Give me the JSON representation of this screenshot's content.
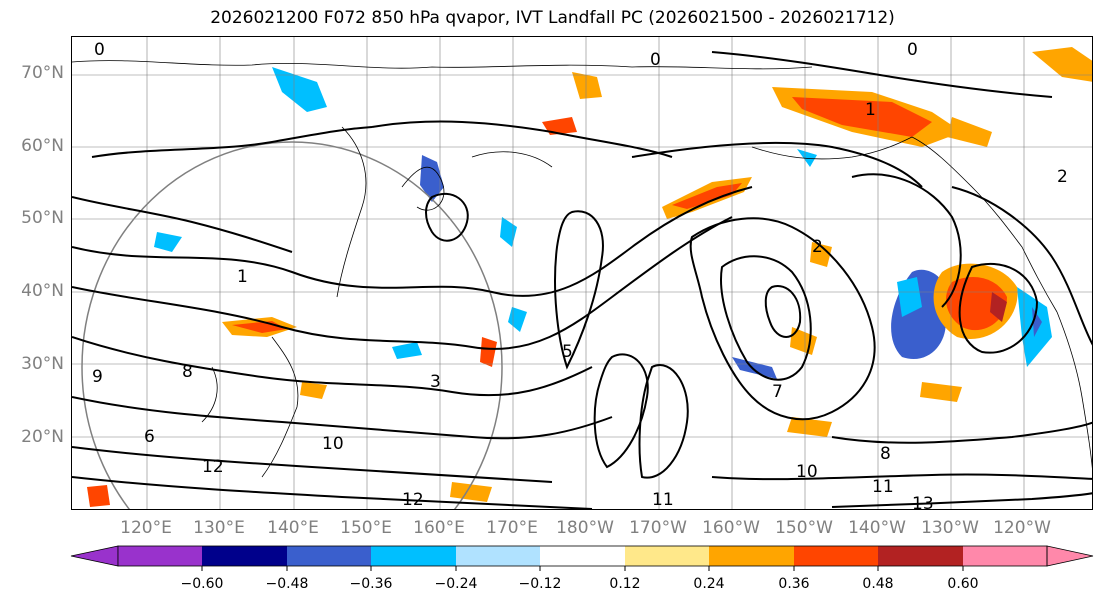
{
  "title": "2026021200 F072 850 hPa qvapor, IVT Landfall PC (2026021500 - 2026021712)",
  "lat_labels": [
    "70°N",
    "60°N",
    "50°N",
    "40°N",
    "30°N",
    "20°N"
  ],
  "lon_labels": [
    "120°E",
    "130°E",
    "140°E",
    "150°E",
    "160°E",
    "170°E",
    "180°W",
    "170°W",
    "160°W",
    "150°W",
    "140°W",
    "130°W",
    "120°W"
  ],
  "colorbar": {
    "tick_labels": [
      "−0.60",
      "−0.48",
      "−0.36",
      "−0.24",
      "−0.12",
      "0.12",
      "0.24",
      "0.36",
      "0.48",
      "0.60"
    ],
    "colors": [
      "#9932cc",
      "#00008b",
      "#3a5fcd",
      "#00bfff",
      "#b0e2ff",
      "#ffffff",
      "#ffe88a",
      "#ffa500",
      "#ff4500",
      "#b22222",
      "#ff88aa"
    ]
  },
  "contour_labels": [
    "0",
    "0",
    "0",
    "1",
    "1",
    "2",
    "2",
    "3",
    "5",
    "6",
    "7",
    "8",
    "8",
    "9",
    "10",
    "10",
    "11",
    "11",
    "12",
    "12",
    "13"
  ],
  "colors": {
    "contour": "#000000",
    "coastline": "#000000",
    "grid": "#808080",
    "axis_label": "#808080",
    "range_ring": "#808080"
  }
}
